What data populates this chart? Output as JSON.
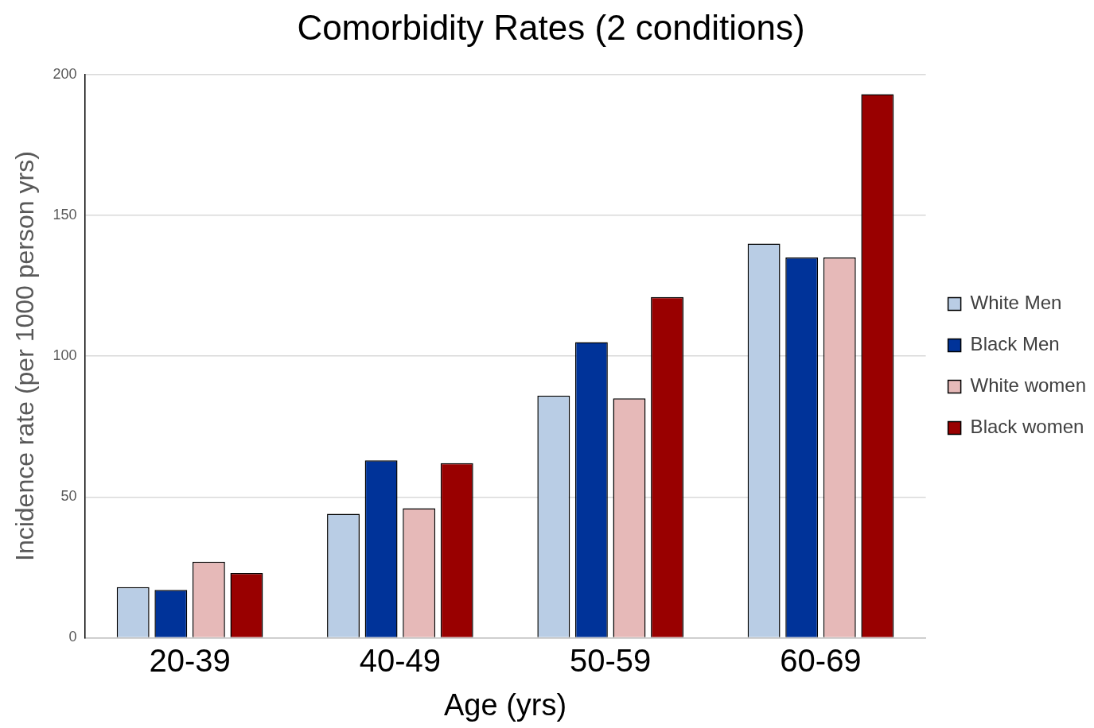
{
  "chart_data": {
    "type": "bar",
    "title": "Comorbidity Rates (2 conditions)",
    "xlabel": "Age (yrs)",
    "ylabel": "Incidence rate (per 1000 person yrs)",
    "categories": [
      "20-39",
      "40-49",
      "50-59",
      "60-69"
    ],
    "series": [
      {
        "name": "White Men",
        "color": "#b9cde5",
        "values": [
          18,
          44,
          86,
          140
        ]
      },
      {
        "name": "Black Men",
        "color": "#003399",
        "values": [
          17,
          63,
          105,
          135
        ]
      },
      {
        "name": "White women",
        "color": "#e6b9b8",
        "values": [
          27,
          46,
          85,
          135
        ]
      },
      {
        "name": "Black women",
        "color": "#990000",
        "values": [
          23,
          62,
          121,
          193
        ]
      }
    ],
    "ylim": [
      0,
      200
    ],
    "yticks": [
      0,
      50,
      100,
      150,
      200
    ],
    "grid": "y",
    "legend": "right"
  }
}
